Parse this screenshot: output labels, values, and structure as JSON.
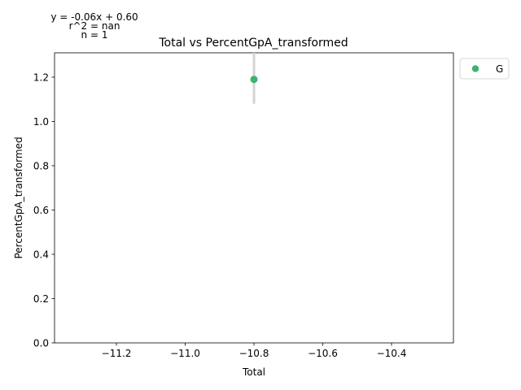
{
  "chart_data": {
    "type": "scatter",
    "title": "Total vs PercentGpA_transformed",
    "xlabel": "Total",
    "ylabel": "PercentGpA_transformed",
    "xlim": [
      -11.38,
      -10.22
    ],
    "ylim": [
      0.0,
      1.31
    ],
    "x_ticks": [
      -11.2,
      -11.0,
      -10.8,
      -10.6,
      -10.4
    ],
    "x_tick_labels": [
      "−11.2",
      "−11.0",
      "−10.8",
      "−10.6",
      "−10.4"
    ],
    "y_ticks": [
      0.0,
      0.2,
      0.4,
      0.6,
      0.8,
      1.0,
      1.2
    ],
    "y_tick_labels": [
      "0.0",
      "0.2",
      "0.4",
      "0.6",
      "0.8",
      "1.0",
      "1.2"
    ],
    "grid": false,
    "legend_position": "outside-top-right",
    "series": [
      {
        "name": "G",
        "color": "#3cb371",
        "points": [
          {
            "x": -10.8,
            "y": 1.19,
            "err_low": 1.08,
            "err_high": 1.31
          }
        ]
      }
    ],
    "errorbar_color": "#d3d3d3",
    "annotations": {
      "equation": "y = -0.06x + 0.60",
      "r2": "r^2 = nan",
      "n": "n = 1"
    }
  }
}
